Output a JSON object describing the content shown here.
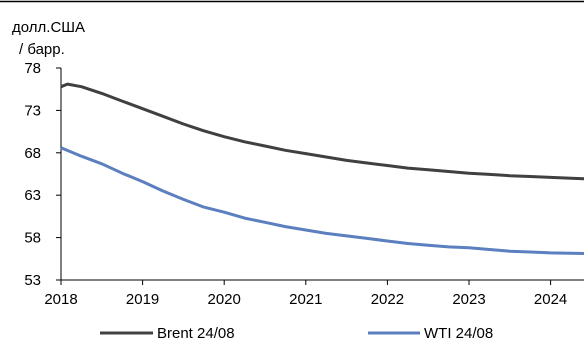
{
  "chart_data": {
    "type": "line",
    "unit_label_lines": [
      "долл.США",
      "/ барр."
    ],
    "x_tick_labels": [
      "2018",
      "2019",
      "2020",
      "2021",
      "2022",
      "2023",
      "2024"
    ],
    "y_tick_labels": [
      "78",
      "73",
      "68",
      "63",
      "58",
      "53"
    ],
    "xlim": [
      2018,
      2024.5
    ],
    "ylim": [
      53,
      78
    ],
    "legend_position": "bottom",
    "series": [
      {
        "name": "Brent 24/08",
        "color": "#404040",
        "points": [
          [
            2018.0,
            75.8
          ],
          [
            2018.08,
            76.1
          ],
          [
            2018.25,
            75.8
          ],
          [
            2018.5,
            75.0
          ],
          [
            2018.75,
            74.1
          ],
          [
            2019.0,
            73.2
          ],
          [
            2019.25,
            72.3
          ],
          [
            2019.5,
            71.4
          ],
          [
            2019.75,
            70.6
          ],
          [
            2020.0,
            69.9
          ],
          [
            2020.25,
            69.3
          ],
          [
            2020.5,
            68.8
          ],
          [
            2020.75,
            68.3
          ],
          [
            2021.0,
            67.9
          ],
          [
            2021.25,
            67.5
          ],
          [
            2021.5,
            67.1
          ],
          [
            2021.75,
            66.8
          ],
          [
            2022.0,
            66.5
          ],
          [
            2022.25,
            66.2
          ],
          [
            2022.5,
            66.0
          ],
          [
            2022.75,
            65.8
          ],
          [
            2023.0,
            65.6
          ],
          [
            2023.25,
            65.45
          ],
          [
            2023.5,
            65.3
          ],
          [
            2023.75,
            65.2
          ],
          [
            2024.0,
            65.1
          ],
          [
            2024.25,
            65.0
          ],
          [
            2024.5,
            64.9
          ]
        ]
      },
      {
        "name": "WTI 24/08",
        "color": "#5b7fbf",
        "points": [
          [
            2018.0,
            68.6
          ],
          [
            2018.25,
            67.6
          ],
          [
            2018.5,
            66.7
          ],
          [
            2018.75,
            65.6
          ],
          [
            2019.0,
            64.6
          ],
          [
            2019.25,
            63.5
          ],
          [
            2019.5,
            62.5
          ],
          [
            2019.75,
            61.6
          ],
          [
            2020.0,
            61.0
          ],
          [
            2020.25,
            60.3
          ],
          [
            2020.5,
            59.8
          ],
          [
            2020.75,
            59.3
          ],
          [
            2021.0,
            58.9
          ],
          [
            2021.25,
            58.5
          ],
          [
            2021.5,
            58.2
          ],
          [
            2021.75,
            57.9
          ],
          [
            2022.0,
            57.6
          ],
          [
            2022.25,
            57.3
          ],
          [
            2022.5,
            57.1
          ],
          [
            2022.75,
            56.9
          ],
          [
            2023.0,
            56.8
          ],
          [
            2023.25,
            56.6
          ],
          [
            2023.5,
            56.4
          ],
          [
            2023.75,
            56.3
          ],
          [
            2024.0,
            56.2
          ],
          [
            2024.25,
            56.15
          ],
          [
            2024.5,
            56.1
          ]
        ]
      }
    ]
  }
}
